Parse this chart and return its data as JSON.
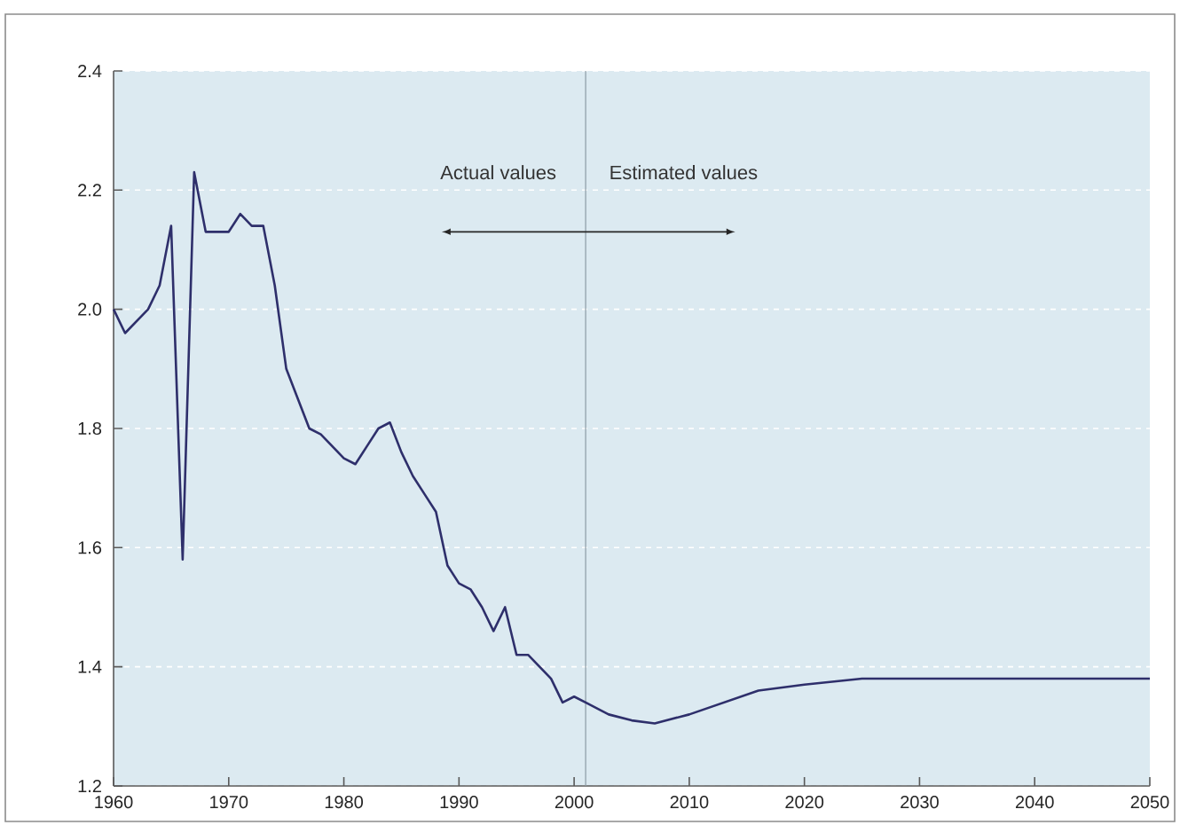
{
  "chart_data": {
    "type": "line",
    "x": [
      1960,
      1961,
      1962,
      1963,
      1964,
      1965,
      1966,
      1967,
      1968,
      1969,
      1970,
      1971,
      1972,
      1973,
      1974,
      1975,
      1976,
      1977,
      1978,
      1979,
      1980,
      1981,
      1982,
      1983,
      1984,
      1985,
      1986,
      1987,
      1988,
      1989,
      1990,
      1991,
      1992,
      1993,
      1994,
      1995,
      1996,
      1997,
      1998,
      1999,
      2000,
      2001,
      2003,
      2005,
      2007,
      2010,
      2013,
      2016,
      2020,
      2025,
      2030,
      2040,
      2050
    ],
    "series": [
      {
        "color": "#2e2f6b",
        "values": [
          2.0,
          1.96,
          1.98,
          2.0,
          2.04,
          2.14,
          1.58,
          2.23,
          2.13,
          2.13,
          2.13,
          2.16,
          2.14,
          2.14,
          2.04,
          1.9,
          1.85,
          1.8,
          1.79,
          1.77,
          1.75,
          1.74,
          1.77,
          1.8,
          1.81,
          1.76,
          1.72,
          1.69,
          1.66,
          1.57,
          1.54,
          1.53,
          1.5,
          1.46,
          1.5,
          1.42,
          1.42,
          1.4,
          1.38,
          1.34,
          1.35,
          1.34,
          1.32,
          1.31,
          1.305,
          1.32,
          1.34,
          1.36,
          1.37,
          1.38,
          1.38,
          1.38,
          1.38
        ]
      }
    ],
    "xlim": [
      1960,
      2050
    ],
    "xticks": [
      1960,
      1970,
      1980,
      1990,
      2000,
      2010,
      2020,
      2030,
      2040,
      2050
    ],
    "ylim": [
      1.2,
      2.4
    ],
    "yticks": [
      {
        "value": 1.2,
        "label": "1.2"
      },
      {
        "value": 1.4,
        "label": "1.4"
      },
      {
        "value": 1.6,
        "label": "1.6"
      },
      {
        "value": 1.8,
        "label": "1.8"
      },
      {
        "value": 2.0,
        "label": "2.0"
      },
      {
        "value": 2.2,
        "label": "2.2"
      },
      {
        "value": 2.4,
        "label": "2.4"
      }
    ],
    "grid": "y",
    "marker": "none",
    "line_style": "solid",
    "ref_lines": [
      {
        "axis": "x",
        "value": 2001,
        "color": "#8a9aa3"
      }
    ],
    "annotations": [
      "Actual values",
      "Estimated values"
    ]
  }
}
